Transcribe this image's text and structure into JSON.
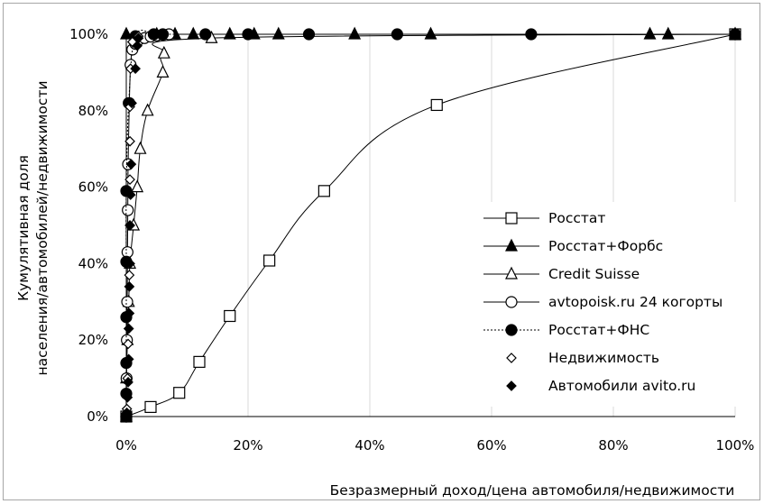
{
  "chart_data": {
    "type": "line",
    "title": "",
    "xlabel": "Безразмерный доход/цена автомобиля/недвижимости",
    "ylabel_line1": "Кумулятивная доля",
    "ylabel_line2": "населения/автомобилей/недвижимости",
    "xlim": [
      0,
      100
    ],
    "ylim": [
      0,
      100
    ],
    "grid": "vertical",
    "legend_position": "right",
    "x_ticks": [
      "0%",
      "20%",
      "40%",
      "60%",
      "80%",
      "100%"
    ],
    "y_ticks": [
      "0%",
      "20%",
      "40%",
      "60%",
      "80%",
      "100%"
    ],
    "series": [
      {
        "name": "Росстат",
        "marker": "square-open",
        "line": "solid",
        "points": [
          [
            0,
            0
          ],
          [
            4,
            2.5
          ],
          [
            8.7,
            6.2
          ],
          [
            12,
            14.3
          ],
          [
            17,
            26.3
          ],
          [
            23.5,
            40.8
          ],
          [
            32.5,
            59
          ],
          [
            51,
            81.5
          ],
          [
            100,
            100
          ]
        ]
      },
      {
        "name": "Росстат+Форбс",
        "marker": "triangle-filled",
        "line": "solid",
        "points": [
          [
            0,
            100
          ],
          [
            5,
            100
          ],
          [
            8,
            100
          ],
          [
            11,
            100
          ],
          [
            17,
            100
          ],
          [
            21,
            100
          ],
          [
            25,
            100
          ],
          [
            37.5,
            100
          ],
          [
            50,
            100
          ],
          [
            86,
            100
          ],
          [
            89,
            100
          ],
          [
            100,
            100
          ]
        ]
      },
      {
        "name": "Credit Suisse",
        "marker": "triangle-open",
        "line": "solid",
        "points": [
          [
            0,
            0
          ],
          [
            0,
            10
          ],
          [
            0.2,
            20
          ],
          [
            0.4,
            30
          ],
          [
            0.6,
            40
          ],
          [
            1.2,
            50
          ],
          [
            1.8,
            60
          ],
          [
            2.3,
            70
          ],
          [
            3.5,
            80
          ],
          [
            6,
            90
          ],
          [
            6.2,
            95
          ],
          [
            14,
            99
          ],
          [
            100,
            100
          ]
        ]
      },
      {
        "name": "avtopoisk.ru 24 когорты",
        "marker": "circle-open",
        "line": "solid",
        "points": [
          [
            0,
            0
          ],
          [
            0.05,
            10
          ],
          [
            0.1,
            20
          ],
          [
            0.15,
            30
          ],
          [
            0.2,
            43
          ],
          [
            0.25,
            54
          ],
          [
            0.3,
            66
          ],
          [
            0.5,
            82
          ],
          [
            0.7,
            92
          ],
          [
            1,
            96
          ],
          [
            1.5,
            97.5
          ],
          [
            2,
            98.5
          ],
          [
            3,
            99
          ],
          [
            4,
            99.4
          ],
          [
            5,
            99.7
          ],
          [
            6,
            99.9
          ],
          [
            7,
            100
          ]
        ]
      },
      {
        "name": "Росстат+ФНС",
        "marker": "circle-filled",
        "line": "dotted",
        "points": [
          [
            0,
            0
          ],
          [
            0,
            6
          ],
          [
            0,
            14
          ],
          [
            0,
            26
          ],
          [
            0,
            40.5
          ],
          [
            0,
            59
          ],
          [
            0.4,
            82
          ],
          [
            1.5,
            99.5
          ],
          [
            4.5,
            100
          ],
          [
            6,
            100
          ],
          [
            13,
            100
          ],
          [
            20,
            100
          ],
          [
            30,
            100
          ],
          [
            44.5,
            100
          ],
          [
            66.5,
            100
          ],
          [
            100,
            100
          ]
        ]
      },
      {
        "name": "Недвижимость",
        "marker": "diamond-open",
        "line": "none",
        "points": [
          [
            0.1,
            2
          ],
          [
            0.2,
            10
          ],
          [
            0.3,
            19
          ],
          [
            0.4,
            27
          ],
          [
            0.5,
            37
          ],
          [
            0.6,
            50
          ],
          [
            0.6,
            62
          ],
          [
            0.6,
            72
          ],
          [
            0.6,
            81
          ],
          [
            0.7,
            91
          ],
          [
            1,
            98
          ],
          [
            2,
            99.5
          ]
        ]
      },
      {
        "name": "Автомобили avito.ru",
        "marker": "diamond-filled",
        "line": "none",
        "points": [
          [
            0.1,
            1
          ],
          [
            0.2,
            5
          ],
          [
            0.3,
            9
          ],
          [
            0.4,
            15
          ],
          [
            0.4,
            23
          ],
          [
            0.5,
            27
          ],
          [
            0.5,
            34
          ],
          [
            0.6,
            40
          ],
          [
            0.6,
            50
          ],
          [
            0.7,
            58
          ],
          [
            0.8,
            66
          ],
          [
            0.9,
            82
          ],
          [
            1.5,
            91
          ],
          [
            1.8,
            97
          ],
          [
            2,
            99
          ]
        ]
      }
    ]
  }
}
